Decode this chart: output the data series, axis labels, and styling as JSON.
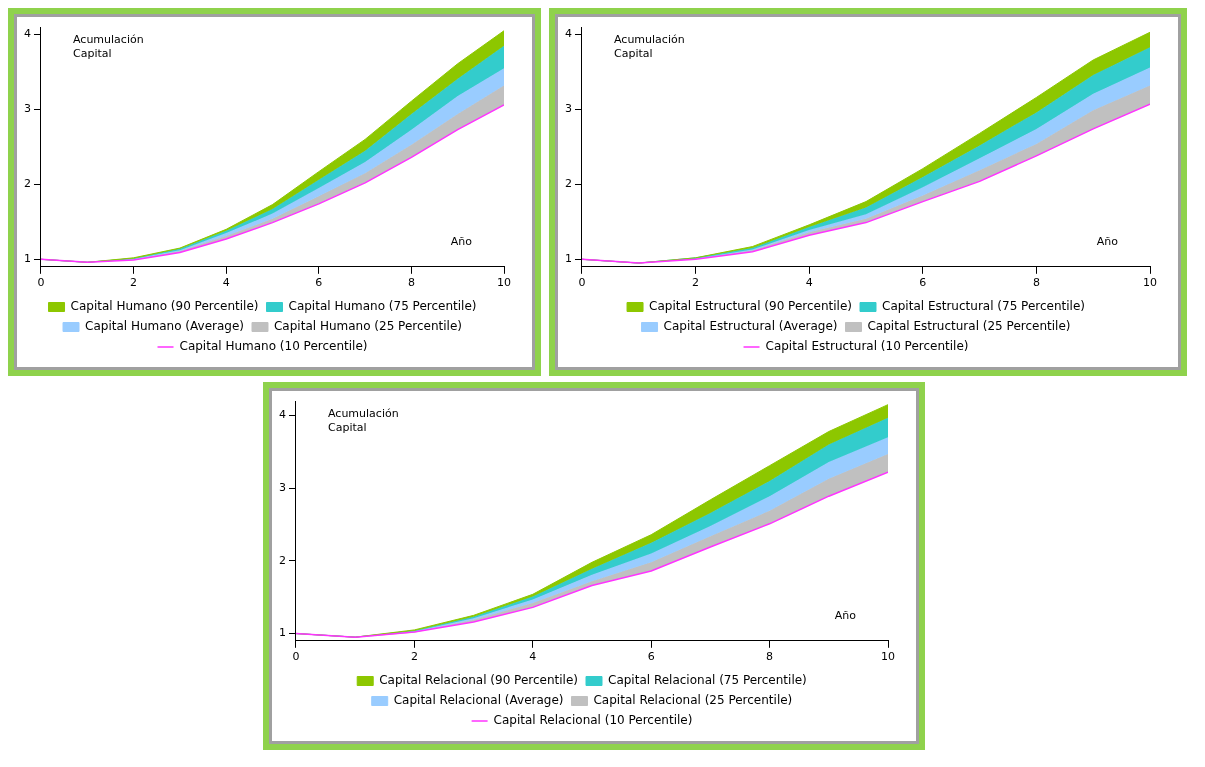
{
  "chart_data": [
    {
      "type": "area",
      "xlabel": "Año",
      "ylabel": "Acumulación\nCapital",
      "x": [
        0,
        1,
        2,
        3,
        4,
        5,
        6,
        7,
        8,
        9,
        10
      ],
      "xlim": [
        0,
        10
      ],
      "xticks": [
        0,
        2,
        4,
        6,
        8,
        10
      ],
      "ylim": [
        0.9,
        4.1
      ],
      "yticks": [
        1,
        2,
        3,
        4
      ],
      "grid": false,
      "legend": "bottom",
      "series": [
        {
          "name": "Capital Humano (90 Percentile)",
          "color": "#8dc700",
          "values": [
            1.0,
            0.96,
            1.02,
            1.15,
            1.4,
            1.73,
            2.17,
            2.6,
            3.11,
            3.61,
            4.05
          ]
        },
        {
          "name": "Capital Humano (75 Percentile)",
          "color": "#33cccc",
          "values": [
            1.0,
            0.96,
            1.01,
            1.14,
            1.38,
            1.67,
            2.06,
            2.45,
            2.94,
            3.41,
            3.85
          ]
        },
        {
          "name": "Capital Humano (Average)",
          "color": "#99ccff",
          "values": [
            1.0,
            0.96,
            1.01,
            1.12,
            1.35,
            1.61,
            1.95,
            2.3,
            2.73,
            3.18,
            3.55
          ]
        },
        {
          "name": "Capital Humano (25 Percentile)",
          "color": "#c0c0c0",
          "values": [
            1.0,
            0.96,
            1.0,
            1.11,
            1.31,
            1.54,
            1.84,
            2.15,
            2.53,
            2.94,
            3.32
          ]
        },
        {
          "name": "Capital Humano (10 Percentile)",
          "color": "#ff33ff",
          "type": "line",
          "values": [
            1.0,
            0.96,
            0.99,
            1.09,
            1.27,
            1.49,
            1.74,
            2.02,
            2.36,
            2.73,
            3.06
          ]
        }
      ]
    },
    {
      "type": "area",
      "xlabel": "Año",
      "ylabel": "Acumulación\nCapital",
      "x": [
        0,
        1,
        2,
        3,
        4,
        5,
        6,
        7,
        8,
        9,
        10
      ],
      "xlim": [
        0,
        10
      ],
      "xticks": [
        0,
        2,
        4,
        6,
        8,
        10
      ],
      "ylim": [
        0.9,
        4.1
      ],
      "yticks": [
        1,
        2,
        3,
        4
      ],
      "grid": false,
      "legend": "bottom",
      "series": [
        {
          "name": "Capital Estructural (90 Percentile)",
          "color": "#8dc700",
          "values": [
            1.0,
            0.95,
            1.02,
            1.17,
            1.46,
            1.77,
            2.21,
            2.68,
            3.16,
            3.66,
            4.03
          ]
        },
        {
          "name": "Capital Estructural (75 Percentile)",
          "color": "#33cccc",
          "values": [
            1.0,
            0.95,
            1.02,
            1.15,
            1.43,
            1.69,
            2.1,
            2.52,
            2.96,
            3.46,
            3.83
          ]
        },
        {
          "name": "Capital Estructural (Average)",
          "color": "#99ccff",
          "values": [
            1.0,
            0.95,
            1.01,
            1.13,
            1.39,
            1.6,
            1.96,
            2.35,
            2.74,
            3.21,
            3.56
          ]
        },
        {
          "name": "Capital Estructural (25 Percentile)",
          "color": "#c0c0c0",
          "values": [
            1.0,
            0.95,
            1.01,
            1.12,
            1.36,
            1.54,
            1.85,
            2.19,
            2.54,
            2.99,
            3.32
          ]
        },
        {
          "name": "Capital Estructural (10 Percentile)",
          "color": "#ff33ff",
          "type": "line",
          "values": [
            1.0,
            0.95,
            1.0,
            1.1,
            1.32,
            1.49,
            1.77,
            2.04,
            2.38,
            2.74,
            3.07
          ]
        }
      ]
    },
    {
      "type": "area",
      "xlabel": "Año",
      "ylabel": "Acumulación\nCapital",
      "x": [
        0,
        1,
        2,
        3,
        4,
        5,
        6,
        7,
        8,
        9,
        10
      ],
      "xlim": [
        0,
        10
      ],
      "xticks": [
        0,
        2,
        4,
        6,
        8,
        10
      ],
      "ylim": [
        0.9,
        4.2
      ],
      "yticks": [
        1,
        2,
        3,
        4
      ],
      "grid": false,
      "legend": "bottom",
      "series": [
        {
          "name": "Capital Relacional (90 Percentile)",
          "color": "#8dc700",
          "values": [
            1.0,
            0.95,
            1.05,
            1.25,
            1.54,
            1.98,
            2.36,
            2.84,
            3.31,
            3.78,
            4.15
          ]
        },
        {
          "name": "Capital Relacional (75 Percentile)",
          "color": "#33cccc",
          "values": [
            1.0,
            0.95,
            1.04,
            1.23,
            1.51,
            1.89,
            2.25,
            2.66,
            3.1,
            3.6,
            3.97
          ]
        },
        {
          "name": "Capital Relacional (Average)",
          "color": "#99ccff",
          "values": [
            1.0,
            0.95,
            1.03,
            1.21,
            1.47,
            1.81,
            2.1,
            2.48,
            2.89,
            3.36,
            3.7
          ]
        },
        {
          "name": "Capital Relacional (25 Percentile)",
          "color": "#c0c0c0",
          "values": [
            1.0,
            0.95,
            1.02,
            1.19,
            1.42,
            1.72,
            1.98,
            2.34,
            2.69,
            3.13,
            3.47
          ]
        },
        {
          "name": "Capital Relacional (10 Percentile)",
          "color": "#ff33ff",
          "type": "line",
          "values": [
            1.0,
            0.95,
            1.02,
            1.16,
            1.36,
            1.66,
            1.86,
            2.19,
            2.51,
            2.89,
            3.22
          ]
        }
      ]
    }
  ]
}
